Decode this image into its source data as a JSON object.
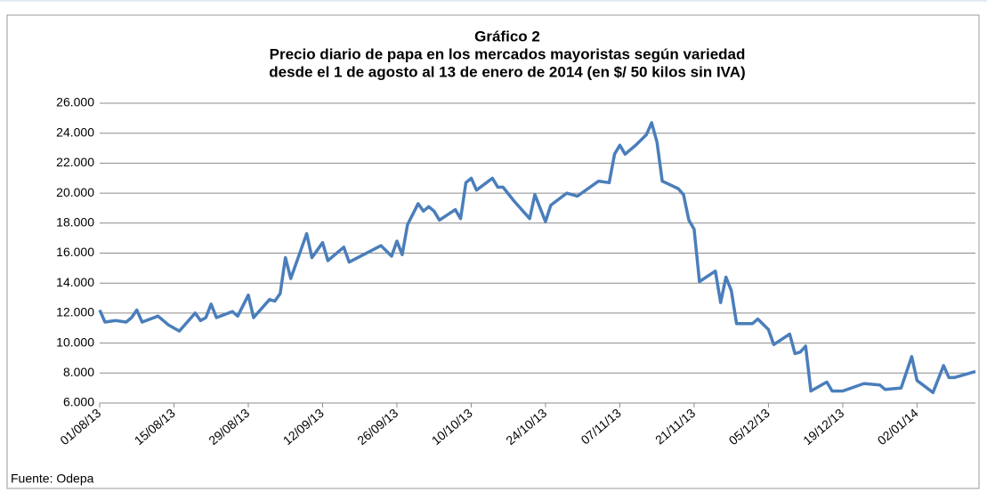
{
  "chart_data": {
    "type": "line",
    "title": "Gráfico 2",
    "subtitle": [
      "Precio diario de papa en los mercados mayoristas  según variedad",
      "desde el 1 de agosto  al 13 de enero de 2014 (en $/ 50 kilos sin IVA)"
    ],
    "source": "Fuente: Odepa",
    "x": [
      "01/08/13",
      "02/08/13",
      "04/08/13",
      "06/08/13",
      "07/08/13",
      "08/08/13",
      "09/08/13",
      "12/08/13",
      "14/08/13",
      "16/08/13",
      "19/08/13",
      "20/08/13",
      "21/08/13",
      "22/08/13",
      "23/08/13",
      "26/08/13",
      "27/08/13",
      "29/08/13",
      "30/08/13",
      "02/09/13",
      "03/09/13",
      "04/09/13",
      "05/09/13",
      "06/09/13",
      "09/09/13",
      "10/09/13",
      "12/09/13",
      "13/09/13",
      "16/09/13",
      "17/09/13",
      "23/09/13",
      "25/09/13",
      "26/09/13",
      "27/09/13",
      "28/09/13",
      "30/09/13",
      "01/10/13",
      "02/10/13",
      "03/10/13",
      "04/10/13",
      "07/10/13",
      "08/10/13",
      "09/10/13",
      "10/10/13",
      "11/10/13",
      "14/10/13",
      "15/10/13",
      "16/10/13",
      "18/10/13",
      "21/10/13",
      "22/10/13",
      "24/10/13",
      "25/10/13",
      "28/10/13",
      "30/10/13",
      "03/11/13",
      "05/11/13",
      "06/11/13",
      "07/11/13",
      "08/11/13",
      "10/11/13",
      "12/11/13",
      "13/11/13",
      "14/11/13",
      "15/11/13",
      "18/11/13",
      "19/11/13",
      "20/11/13",
      "21/11/13",
      "22/11/13",
      "25/11/13",
      "26/11/13",
      "27/11/13",
      "28/11/13",
      "29/11/13",
      "02/12/13",
      "03/12/13",
      "05/12/13",
      "06/12/13",
      "09/12/13",
      "10/12/13",
      "11/12/13",
      "12/12/13",
      "13/12/13",
      "16/12/13",
      "17/12/13",
      "19/12/13",
      "23/12/13",
      "26/12/13",
      "27/12/13",
      "30/12/13",
      "01/01/14",
      "02/01/14",
      "05/01/14",
      "07/01/14",
      "08/01/14",
      "09/01/14",
      "13/01/14"
    ],
    "series": [
      {
        "color": "#4a7ebb",
        "values": [
          12200,
          11400,
          11500,
          11400,
          11700,
          12200,
          11400,
          11800,
          11200,
          10800,
          12000,
          11500,
          11700,
          12600,
          11700,
          12100,
          11800,
          13200,
          11700,
          12900,
          12800,
          13300,
          15700,
          14300,
          17300,
          15700,
          16700,
          15500,
          16400,
          15400,
          16500,
          15800,
          16800,
          15900,
          17900,
          19300,
          18800,
          19100,
          18800,
          18200,
          18900,
          18300,
          20700,
          21000,
          20200,
          21000,
          20400,
          20400,
          19500,
          18300,
          19900,
          18100,
          19200,
          20000,
          19800,
          20800,
          20700,
          22600,
          23200,
          22600,
          23200,
          23900,
          24700,
          23400,
          20800,
          20300,
          19900,
          18200,
          17600,
          14100,
          14800,
          12700,
          14400,
          13500,
          11300,
          11300,
          11600,
          10900,
          9900,
          10600,
          9300,
          9400,
          9800,
          6800,
          7400,
          6800,
          6800,
          7300,
          7200,
          6900,
          7000,
          9100,
          7500,
          6700,
          8500,
          7700,
          7700,
          8100
        ]
      }
    ],
    "xlim": [
      "01/08/13",
      "13/01/14"
    ],
    "xticks": [
      "01/08/13",
      "15/08/13",
      "29/08/13",
      "12/09/13",
      "26/09/13",
      "10/10/13",
      "24/10/13",
      "07/11/13",
      "21/11/13",
      "05/12/13",
      "19/12/13",
      "02/01/14"
    ],
    "ylim": [
      6000,
      26000
    ],
    "yticks": [
      {
        "value": 6000,
        "label": "6.000"
      },
      {
        "value": 8000,
        "label": "8.000"
      },
      {
        "value": 10000,
        "label": "10.000"
      },
      {
        "value": 12000,
        "label": "12.000"
      },
      {
        "value": 14000,
        "label": "14.000"
      },
      {
        "value": 16000,
        "label": "16.000"
      },
      {
        "value": 18000,
        "label": "18.000"
      },
      {
        "value": 20000,
        "label": "20.000"
      },
      {
        "value": 22000,
        "label": "22.000"
      },
      {
        "value": 24000,
        "label": "24.000"
      },
      {
        "value": 26000,
        "label": "26.000"
      }
    ],
    "grid": true
  }
}
